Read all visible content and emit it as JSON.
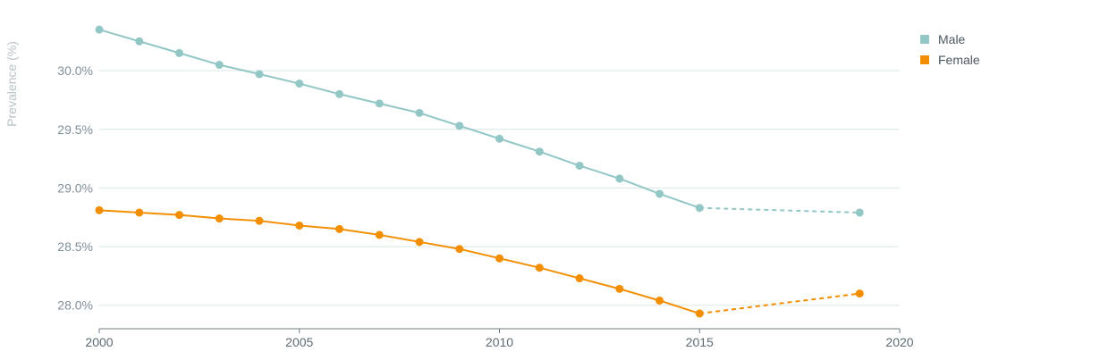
{
  "chart_data": {
    "type": "line",
    "title": "",
    "xlabel": "",
    "ylabel": "Prevalence (%)",
    "xlim": [
      2000,
      2020
    ],
    "ylim": [
      27.8,
      30.45
    ],
    "x_ticks": [
      "2000",
      "2005",
      "2010",
      "2015",
      "2020"
    ],
    "y_ticks": [
      "28.0%",
      "28.5%",
      "29.0%",
      "29.5%",
      "30.0%"
    ],
    "grid": "horizontal",
    "legend_position": "top-right",
    "series": [
      {
        "name": "Male",
        "color": "#93c7c6",
        "x": [
          2000,
          2001,
          2002,
          2003,
          2004,
          2005,
          2006,
          2007,
          2008,
          2009,
          2010,
          2011,
          2012,
          2013,
          2014,
          2015,
          2019
        ],
        "values": [
          30.35,
          30.25,
          30.15,
          30.05,
          29.97,
          29.89,
          29.8,
          29.72,
          29.64,
          29.53,
          29.42,
          29.31,
          29.19,
          29.08,
          28.95,
          28.83,
          28.79
        ],
        "projected_from_index": 15
      },
      {
        "name": "Female",
        "color": "#f28e00",
        "x": [
          2000,
          2001,
          2002,
          2003,
          2004,
          2005,
          2006,
          2007,
          2008,
          2009,
          2010,
          2011,
          2012,
          2013,
          2014,
          2015,
          2019
        ],
        "values": [
          28.81,
          28.79,
          28.77,
          28.74,
          28.72,
          28.68,
          28.65,
          28.6,
          28.54,
          28.48,
          28.4,
          28.32,
          28.23,
          28.14,
          28.04,
          27.93,
          28.1
        ],
        "projected_from_index": 15
      }
    ]
  }
}
